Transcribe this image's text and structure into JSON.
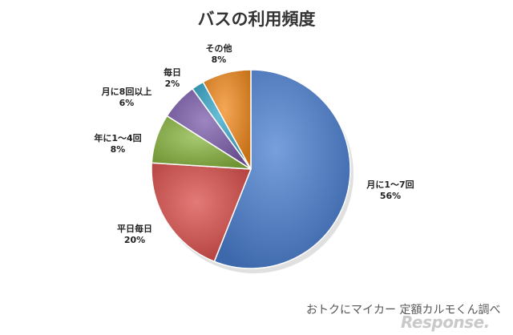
{
  "chart_data": {
    "type": "pie",
    "title": "バスの利用頻度",
    "slices": [
      {
        "label": "月に1～7回",
        "value": 56,
        "value_label": "56%",
        "color": "#4a7fd0"
      },
      {
        "label": "平日毎日",
        "value": 20,
        "value_label": "20%",
        "color": "#d94e4a"
      },
      {
        "label": "年に1～4回",
        "value": 8,
        "value_label": "8%",
        "color": "#88b540"
      },
      {
        "label": "月に8回以上",
        "value": 6,
        "value_label": "6%",
        "color": "#7b5cab"
      },
      {
        "label": "毎日",
        "value": 2,
        "value_label": "2%",
        "color": "#35a6c8"
      },
      {
        "label": "その他",
        "value": 8,
        "value_label": "8%",
        "color": "#f28a1d"
      }
    ],
    "start_angle": "12 o'clock",
    "direction": "clockwise",
    "legend": "none"
  },
  "footer": {
    "credit": "おトクにマイカー 定額カルモくん調べ",
    "watermark": "Response."
  }
}
